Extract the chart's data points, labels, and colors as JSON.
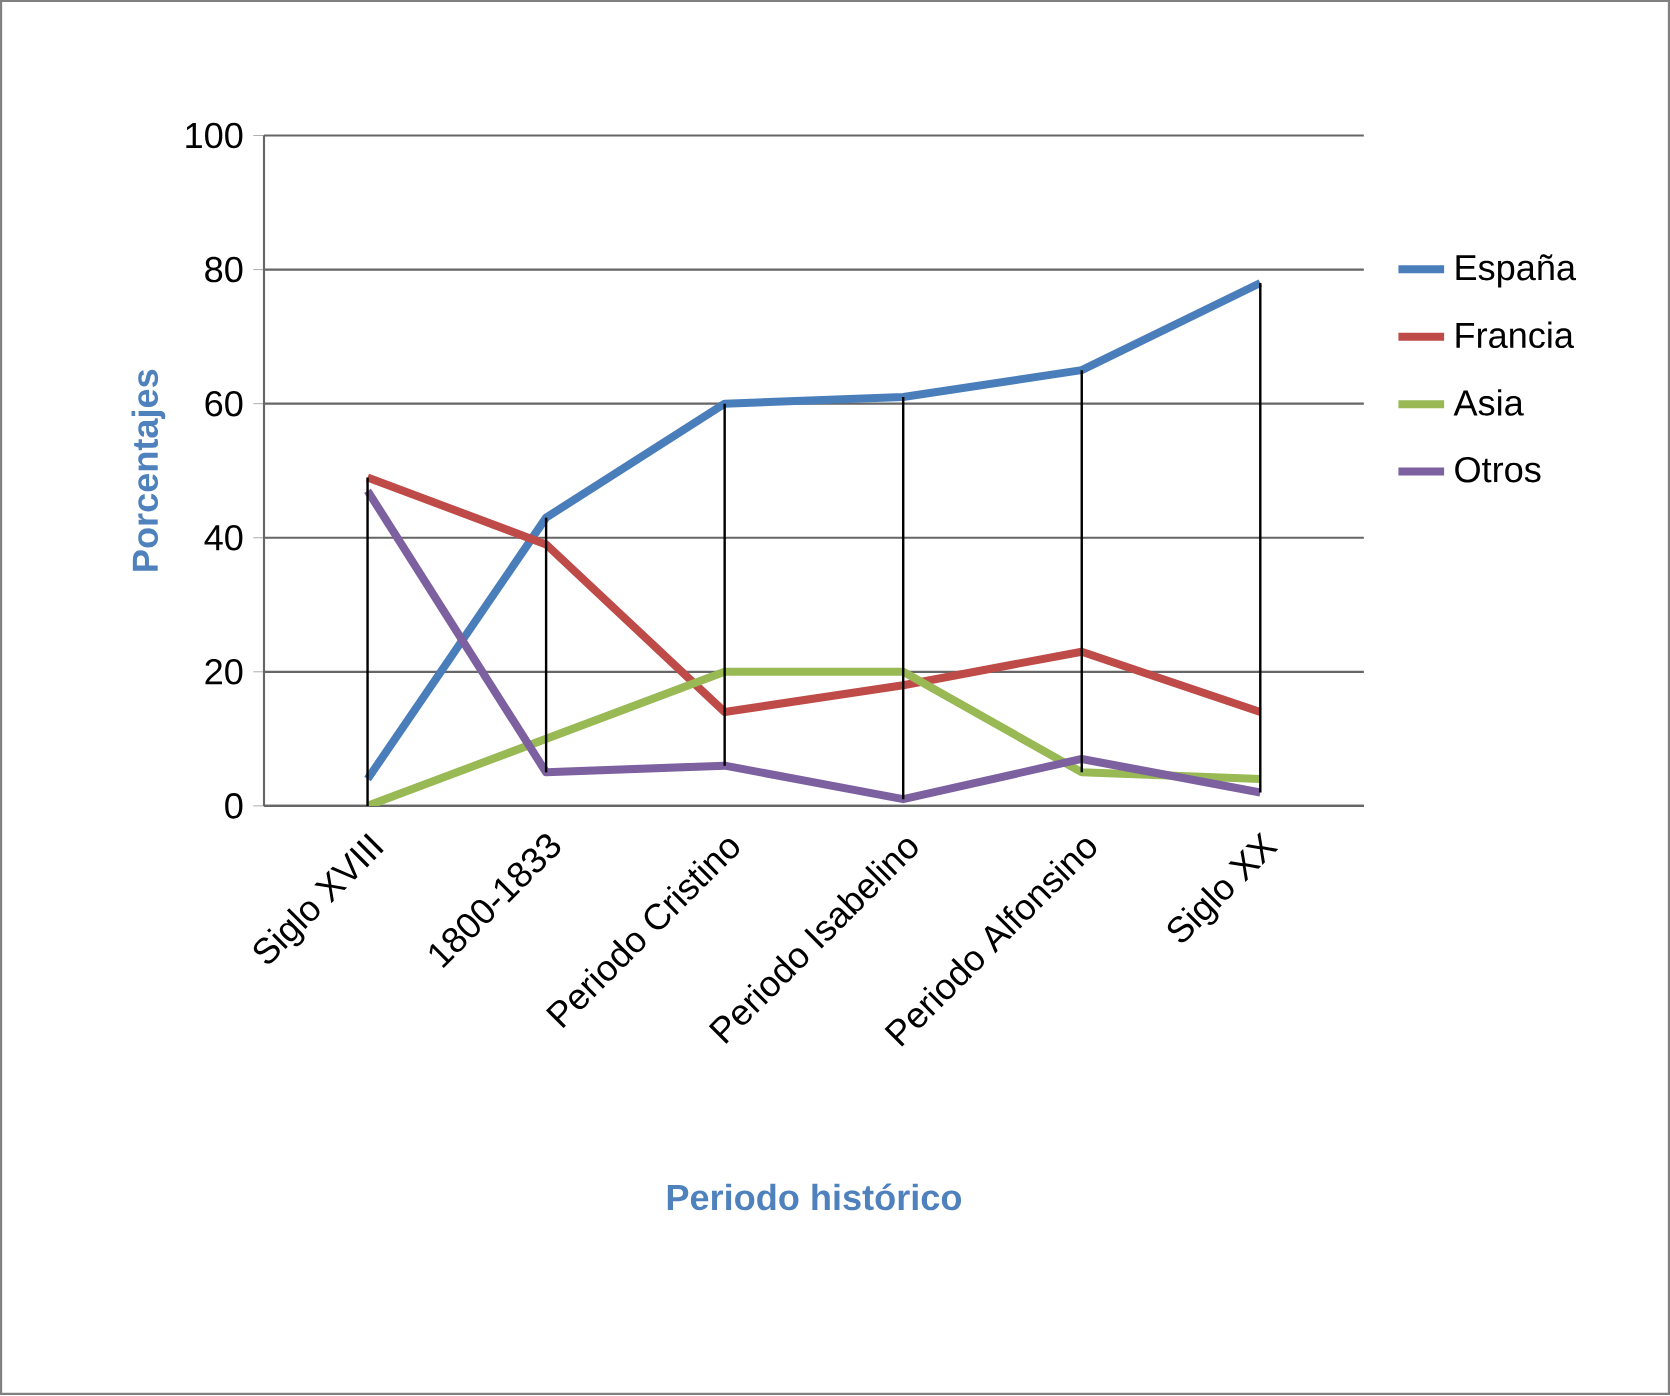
{
  "chart_data": {
    "type": "line",
    "xlabel": "Periodo histórico",
    "ylabel": "Porcentajes",
    "categories": [
      "Siglo XVIII",
      "1800-1833",
      "Periodo Cristino",
      "Periodo Isabelino",
      "Periodo Alfonsino",
      "Siglo XX"
    ],
    "series": [
      {
        "name": "España",
        "color": "#4a7ebb",
        "values": [
          4,
          43,
          60,
          61,
          65,
          78
        ],
        "errors": [
          [
            0,
            49
          ],
          [
            5,
            43
          ],
          [
            6,
            60
          ],
          [
            1,
            61
          ],
          [
            5,
            65
          ],
          [
            2,
            78
          ]
        ]
      },
      {
        "name": "Francia",
        "color": "#be4b48",
        "values": [
          49,
          39,
          14,
          18,
          23,
          14
        ]
      },
      {
        "name": "Asia",
        "color": "#98b954",
        "values": [
          0,
          10,
          20,
          20,
          5,
          4
        ]
      },
      {
        "name": "Otros",
        "color": "#7d60a0",
        "values": [
          47,
          5,
          6,
          1,
          7,
          2
        ]
      }
    ],
    "ylim": [
      0,
      100
    ],
    "yticks": [
      0,
      20,
      40,
      60,
      80,
      100
    ],
    "grid": "y",
    "legend": "right",
    "marker": "none",
    "line_style": "solid"
  }
}
